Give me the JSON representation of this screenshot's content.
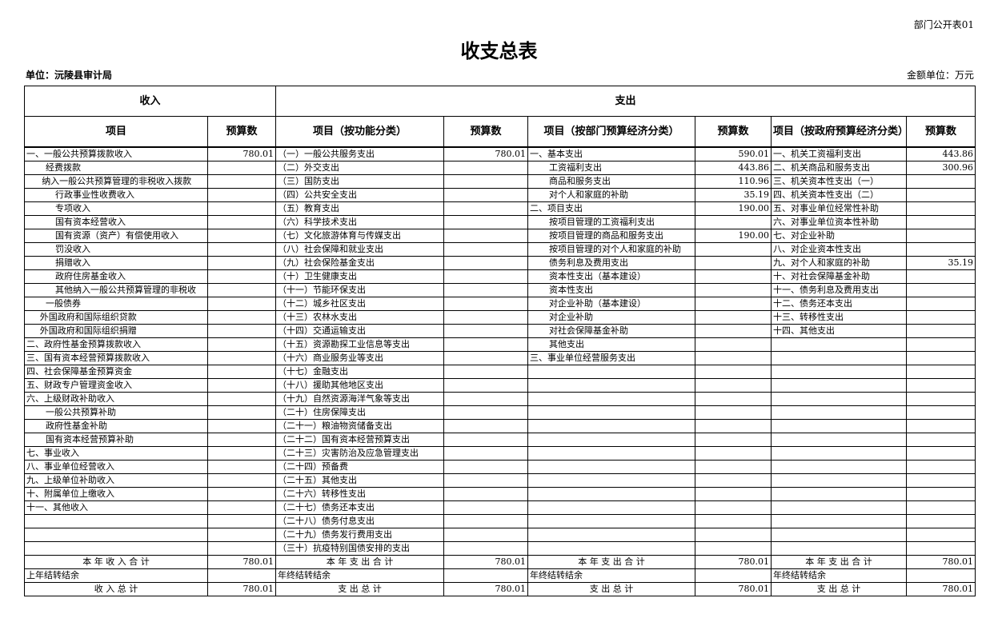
{
  "code": "部门公开表01",
  "title": "收支总表",
  "unit": "单位：沅陵县审计局",
  "money_unit": "金额单位：万元",
  "headers": {
    "income": "收入",
    "expense": "支出",
    "cols": [
      "项目",
      "预算数",
      "项目（按功能分类）",
      "预算数",
      "项目（按部门预算经济分类）",
      "预算数",
      "项目（按政府预算经济分类）",
      "预算数"
    ]
  },
  "income": [
    {
      "label": "一、一般公共预算拨款收入",
      "value": "780.01",
      "indent": 0
    },
    {
      "label": "经费拨款",
      "value": "",
      "indent": 2
    },
    {
      "label": "纳入一般公共预算管理的非税收入拨款",
      "value": "",
      "indent": 1.6
    },
    {
      "label": "行政事业性收费收入",
      "value": "",
      "indent": 3
    },
    {
      "label": "专项收入",
      "value": "",
      "indent": 3
    },
    {
      "label": "国有资本经营收入",
      "value": "",
      "indent": 3
    },
    {
      "label": "国有资源（资产）有偿使用收入",
      "value": "",
      "indent": 3
    },
    {
      "label": "罚没收入",
      "value": "",
      "indent": 3
    },
    {
      "label": "捐赠收入",
      "value": "",
      "indent": 3
    },
    {
      "label": "政府住房基金收入",
      "value": "",
      "indent": 3
    },
    {
      "label": "其他纳入一般公共预算管理的非税收",
      "value": "",
      "indent": 3
    },
    {
      "label": "一般债券",
      "value": "",
      "indent": 2
    },
    {
      "label": "外国政府和国际组织贷款",
      "value": "",
      "indent": 1.4
    },
    {
      "label": "外国政府和国际组织捐赠",
      "value": "",
      "indent": 1.4
    },
    {
      "label": "二、政府性基金预算拨款收入",
      "value": "",
      "indent": 0
    },
    {
      "label": "三、国有资本经营预算拨款收入",
      "value": "",
      "indent": 0
    },
    {
      "label": "四、社会保障基金预算资金",
      "value": "",
      "indent": 0
    },
    {
      "label": "五、财政专户管理资金收入",
      "value": "",
      "indent": 0
    },
    {
      "label": "六、上级财政补助收入",
      "value": "",
      "indent": 0
    },
    {
      "label": "一般公共预算补助",
      "value": "",
      "indent": 2
    },
    {
      "label": "政府性基金补助",
      "value": "",
      "indent": 2
    },
    {
      "label": "国有资本经营预算补助",
      "value": "",
      "indent": 2
    },
    {
      "label": "七、事业收入",
      "value": "",
      "indent": 0
    },
    {
      "label": "八、事业单位经营收入",
      "value": "",
      "indent": 0
    },
    {
      "label": "九、上级单位补助收入",
      "value": "",
      "indent": 0
    },
    {
      "label": "十、附属单位上缴收入",
      "value": "",
      "indent": 0
    },
    {
      "label": "十一、其他收入",
      "value": "",
      "indent": 0
    }
  ],
  "functional": [
    {
      "label": "（一）一般公共服务支出",
      "value": "780.01"
    },
    {
      "label": "（二）外交支出",
      "value": ""
    },
    {
      "label": "（三）国防支出",
      "value": ""
    },
    {
      "label": "（四）公共安全支出",
      "value": ""
    },
    {
      "label": "（五）教育支出",
      "value": ""
    },
    {
      "label": "（六）科学技术支出",
      "value": ""
    },
    {
      "label": "（七）文化旅游体育与传媒支出",
      "value": ""
    },
    {
      "label": "（八）社会保障和就业支出",
      "value": ""
    },
    {
      "label": "（九）社会保险基金支出",
      "value": ""
    },
    {
      "label": "（十）卫生健康支出",
      "value": ""
    },
    {
      "label": "（十一）节能环保支出",
      "value": ""
    },
    {
      "label": "（十二）城乡社区支出",
      "value": ""
    },
    {
      "label": "（十三）农林水支出",
      "value": ""
    },
    {
      "label": "（十四）交通运输支出",
      "value": ""
    },
    {
      "label": "（十五）资源勘探工业信息等支出",
      "value": ""
    },
    {
      "label": "（十六）商业服务业等支出",
      "value": ""
    },
    {
      "label": "（十七）金融支出",
      "value": ""
    },
    {
      "label": "（十八）援助其他地区支出",
      "value": ""
    },
    {
      "label": "（十九）自然资源海洋气象等支出",
      "value": ""
    },
    {
      "label": "（二十）住房保障支出",
      "value": ""
    },
    {
      "label": "（二十一）粮油物资储备支出",
      "value": ""
    },
    {
      "label": "（二十二）国有资本经营预算支出",
      "value": ""
    },
    {
      "label": "（二十三）灾害防治及应急管理支出",
      "value": ""
    },
    {
      "label": "（二十四）预备费",
      "value": ""
    },
    {
      "label": "（二十五）其他支出",
      "value": ""
    },
    {
      "label": "（二十六）转移性支出",
      "value": ""
    },
    {
      "label": "（二十七）债务还本支出",
      "value": ""
    },
    {
      "label": "（二十八）债务付息支出",
      "value": ""
    },
    {
      "label": "（二十九）债务发行费用支出",
      "value": ""
    },
    {
      "label": "（三十）抗疫特别国债安排的支出",
      "value": ""
    }
  ],
  "department": [
    {
      "label": "一、基本支出",
      "value": "590.01",
      "indent": 0
    },
    {
      "label": "工资福利支出",
      "value": "443.86",
      "indent": 2
    },
    {
      "label": "商品和服务支出",
      "value": "110.96",
      "indent": 2
    },
    {
      "label": "对个人和家庭的补助",
      "value": "35.19",
      "indent": 2
    },
    {
      "label": "二、项目支出",
      "value": "190.00",
      "indent": 0
    },
    {
      "label": "按项目管理的工资福利支出",
      "value": "",
      "indent": 2
    },
    {
      "label": "按项目管理的商品和服务支出",
      "value": "190.00",
      "indent": 2
    },
    {
      "label": "按项目管理的对个人和家庭的补助",
      "value": "",
      "indent": 2
    },
    {
      "label": "债务利息及费用支出",
      "value": "",
      "indent": 2
    },
    {
      "label": "资本性支出（基本建设）",
      "value": "",
      "indent": 2
    },
    {
      "label": "资本性支出",
      "value": "",
      "indent": 2
    },
    {
      "label": "对企业补助（基本建设）",
      "value": "",
      "indent": 2
    },
    {
      "label": "对企业补助",
      "value": "",
      "indent": 2
    },
    {
      "label": "对社会保障基金补助",
      "value": "",
      "indent": 2
    },
    {
      "label": "其他支出",
      "value": "",
      "indent": 2
    },
    {
      "label": "三、事业单位经营服务支出",
      "value": "",
      "indent": 0
    }
  ],
  "government": [
    {
      "label": "一、机关工资福利支出",
      "value": "443.86"
    },
    {
      "label": "二、机关商品和服务支出",
      "value": "300.96"
    },
    {
      "label": "三、机关资本性支出（一）",
      "value": ""
    },
    {
      "label": "四、机关资本性支出（二）",
      "value": ""
    },
    {
      "label": "五、对事业单位经常性补助",
      "value": ""
    },
    {
      "label": "六、对事业单位资本性补助",
      "value": ""
    },
    {
      "label": "七、对企业补助",
      "value": ""
    },
    {
      "label": "八、对企业资本性支出",
      "value": ""
    },
    {
      "label": "九、对个人和家庭的补助",
      "value": "35.19"
    },
    {
      "label": "十、对社会保障基金补助",
      "value": ""
    },
    {
      "label": "十一、债务利息及费用支出",
      "value": ""
    },
    {
      "label": "十二、债务还本支出",
      "value": ""
    },
    {
      "label": "十三、转移性支出",
      "value": ""
    },
    {
      "label": "十四、其他支出",
      "value": ""
    }
  ],
  "footer": [
    {
      "cells": [
        {
          "t": "本 年 收 入 合 计",
          "c": 1
        },
        {
          "t": "780.01"
        },
        {
          "t": "本 年 支 出 合 计",
          "c": 1
        },
        {
          "t": "780.01"
        },
        {
          "t": "本 年 支 出 合 计",
          "c": 1
        },
        {
          "t": "780.01"
        },
        {
          "t": "本 年 支 出 合 计",
          "c": 1
        },
        {
          "t": "780.01"
        }
      ]
    },
    {
      "cells": [
        {
          "t": "上年结转结余"
        },
        {
          "t": ""
        },
        {
          "t": "年终结转结余"
        },
        {
          "t": ""
        },
        {
          "t": "年终结转结余"
        },
        {
          "t": ""
        },
        {
          "t": "年终结转结余"
        },
        {
          "t": ""
        }
      ]
    },
    {
      "cells": [
        {
          "t": "收 入 总 计",
          "c": 1
        },
        {
          "t": "780.01"
        },
        {
          "t": "支 出 总 计",
          "c": 1
        },
        {
          "t": "780.01"
        },
        {
          "t": "支 出 总 计",
          "c": 1
        },
        {
          "t": "780.01"
        },
        {
          "t": "支 出 总 计",
          "c": 1
        },
        {
          "t": "780.01"
        }
      ]
    }
  ]
}
